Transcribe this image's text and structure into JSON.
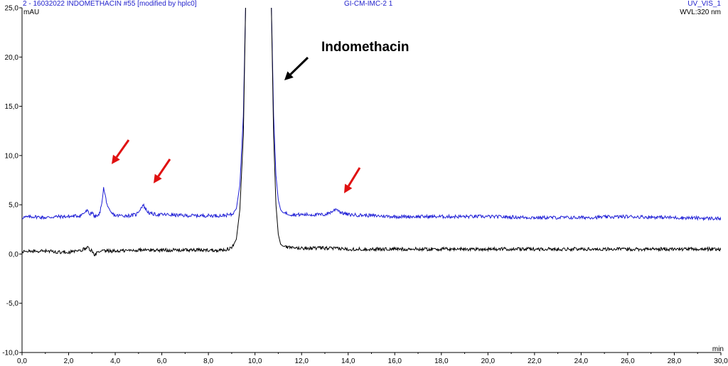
{
  "header": {
    "left": "2 - 16032022 INDOMETHACIN #55 [modified by hplc0]",
    "center": "GI-CM-IMC-2 1",
    "right": "UV_VIS_1",
    "wavelength": "WVL:320 nm"
  },
  "chart_data": {
    "type": "line",
    "title": "",
    "ylabel": "mAU",
    "xlabel": "min",
    "xlim": [
      0,
      30
    ],
    "ylim": [
      -10,
      25
    ],
    "xticks": [
      "0,0",
      "2,0",
      "4,0",
      "6,0",
      "8,0",
      "10,0",
      "12,0",
      "14,0",
      "16,0",
      "18,0",
      "20,0",
      "22,0",
      "24,0",
      "26,0",
      "28,0",
      "30,0"
    ],
    "yticks": [
      "-10,0",
      "-5,0",
      "0,0",
      "5,0",
      "10,0",
      "15,0",
      "20,0",
      "25,0"
    ],
    "annotation": "Indomethacin",
    "colors": {
      "upper_trace": "#1f1fd6",
      "lower_trace": "#000000",
      "highlight_arrow": "#e01010",
      "label_arrow": "#000000"
    },
    "series": [
      {
        "color": "#1f1fd6",
        "x": [
          0.0,
          0.5,
          1.0,
          1.5,
          2.0,
          2.5,
          2.8,
          2.9,
          3.0,
          3.1,
          3.3,
          3.4,
          3.5,
          3.6,
          3.7,
          3.8,
          4.0,
          4.3,
          4.6,
          4.9,
          5.05,
          5.2,
          5.35,
          5.5,
          5.8,
          6.2,
          7.0,
          8.0,
          8.6,
          9.0,
          9.2,
          9.35,
          9.5,
          9.6,
          10.7,
          10.8,
          10.9,
          11.0,
          11.1,
          11.2,
          11.4,
          11.6,
          12.0,
          12.5,
          13.0,
          13.3,
          13.5,
          13.7,
          14.0,
          15.0,
          16.0,
          18.0,
          20.0,
          22.0,
          24.0,
          26.0,
          28.0,
          30.0
        ],
        "y": [
          3.7,
          3.8,
          3.7,
          3.8,
          3.8,
          3.9,
          4.4,
          4.0,
          4.3,
          3.8,
          3.9,
          4.8,
          6.7,
          5.6,
          4.6,
          4.2,
          3.9,
          3.9,
          3.9,
          4.0,
          4.5,
          5.0,
          4.4,
          4.1,
          4.0,
          4.0,
          3.9,
          3.9,
          3.9,
          4.0,
          4.6,
          7.0,
          14.0,
          25.5,
          25.5,
          14.0,
          8.0,
          5.5,
          4.5,
          4.2,
          4.1,
          4.0,
          4.0,
          4.0,
          4.0,
          4.3,
          4.6,
          4.2,
          4.0,
          3.9,
          3.8,
          3.8,
          3.8,
          3.7,
          3.7,
          3.8,
          3.7,
          3.6
        ]
      },
      {
        "color": "#000000",
        "x": [
          0.0,
          0.5,
          1.0,
          1.5,
          2.0,
          2.5,
          2.8,
          2.9,
          3.0,
          3.1,
          3.2,
          3.5,
          4.0,
          5.0,
          6.0,
          7.0,
          8.0,
          8.6,
          9.0,
          9.2,
          9.35,
          9.5,
          9.6,
          10.7,
          10.8,
          10.9,
          11.0,
          11.1,
          11.2,
          11.4,
          11.6,
          12.0,
          13.0,
          14.0,
          16.0,
          18.0,
          20.0,
          22.0,
          24.0,
          26.0,
          28.0,
          30.0
        ],
        "y": [
          0.2,
          0.3,
          0.3,
          0.2,
          0.2,
          0.3,
          0.7,
          0.5,
          0.3,
          -0.2,
          0.1,
          0.3,
          0.3,
          0.4,
          0.4,
          0.4,
          0.4,
          0.4,
          0.6,
          1.5,
          4.5,
          12.0,
          25.5,
          25.5,
          12.0,
          5.0,
          2.0,
          1.0,
          0.8,
          0.7,
          0.6,
          0.6,
          0.6,
          0.5,
          0.5,
          0.5,
          0.5,
          0.5,
          0.5,
          0.5,
          0.5,
          0.5
        ]
      }
    ]
  }
}
